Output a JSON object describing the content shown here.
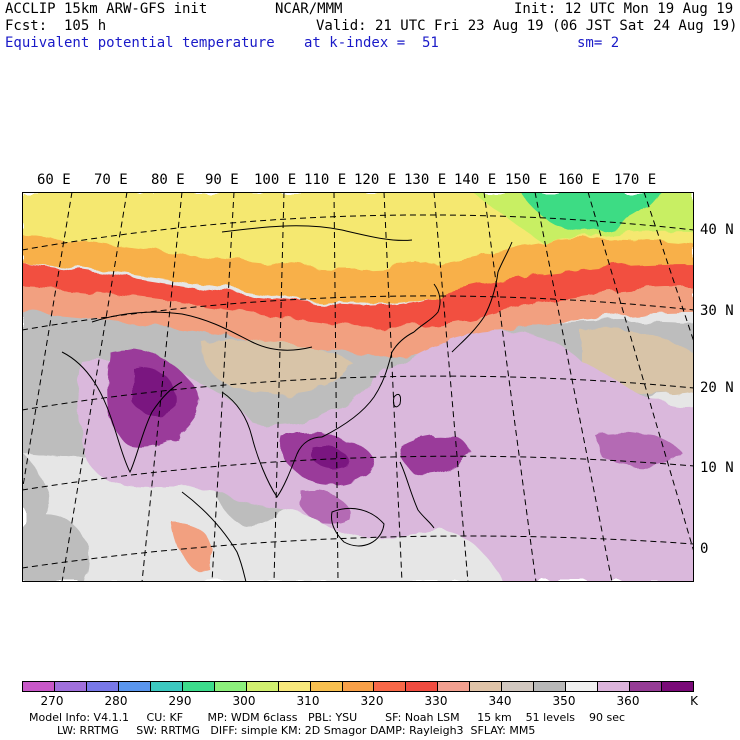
{
  "header": {
    "model": "ACCLIP 15km ARW-GFS init",
    "center": "NCAR/MMM",
    "init": "Init: 12 UTC Mon 19 Aug 19",
    "fcst": "Fcst:  105 h",
    "valid": "Valid: 21 UTC Fri 23 Aug 19 (06 JST Sat 24 Aug 19)",
    "field": "Equivalent potential temperature",
    "level": "at k-index =  51",
    "smooth": "sm= 2"
  },
  "map": {
    "lon_labels": [
      "60 E",
      "70 E",
      "80 E",
      "90 E",
      "100 E",
      "110 E",
      "120 E",
      "130 E",
      "140 E",
      "150 E",
      "160 E",
      "170 E"
    ],
    "lat_labels": [
      "40 N",
      "30 N",
      "20 N",
      "10 N",
      "0"
    ],
    "colors": {
      "cold_high": "#3ddc84",
      "cool": "#c8ef64",
      "warm": "#f5e870",
      "orange": "#f8b048",
      "red": "#f25040",
      "salmon": "#f2a080",
      "tan": "#d8c4a8",
      "gray": "#bdbdbd",
      "lightgray": "#e6e6e6",
      "lavender": "#dab8dc",
      "purple": "#9a3a9a",
      "darkpurple": "#7a1480"
    }
  },
  "colorbar": {
    "colors": [
      "#c858c8",
      "#a070dc",
      "#7878e8",
      "#5a96ee",
      "#3cc8c0",
      "#3cdc8c",
      "#8cf07c",
      "#d2f070",
      "#f8e87c",
      "#f8c050",
      "#f8a048",
      "#f86848",
      "#f04c40",
      "#f2a090",
      "#e0c4a8",
      "#d2c8c0",
      "#b8b8b8",
      "#f0f0f0",
      "#dcb4dc",
      "#963c96",
      "#7a0a78"
    ],
    "ticks": [
      "270",
      "280",
      "290",
      "300",
      "310",
      "320",
      "330",
      "340",
      "350",
      "360"
    ],
    "unit": "K"
  },
  "footer": {
    "line1": "Model Info: V4.1.1     CU: KF       MP: WDM 6class   PBL: YSU        SF: Noah LSM     15 km    51 levels    90 sec",
    "line2": "LW: RRTMG     SW: RRTMG   DIFF: simple KM: 2D Smagor DAMP: Rayleigh3  SFLAY: MM5"
  }
}
